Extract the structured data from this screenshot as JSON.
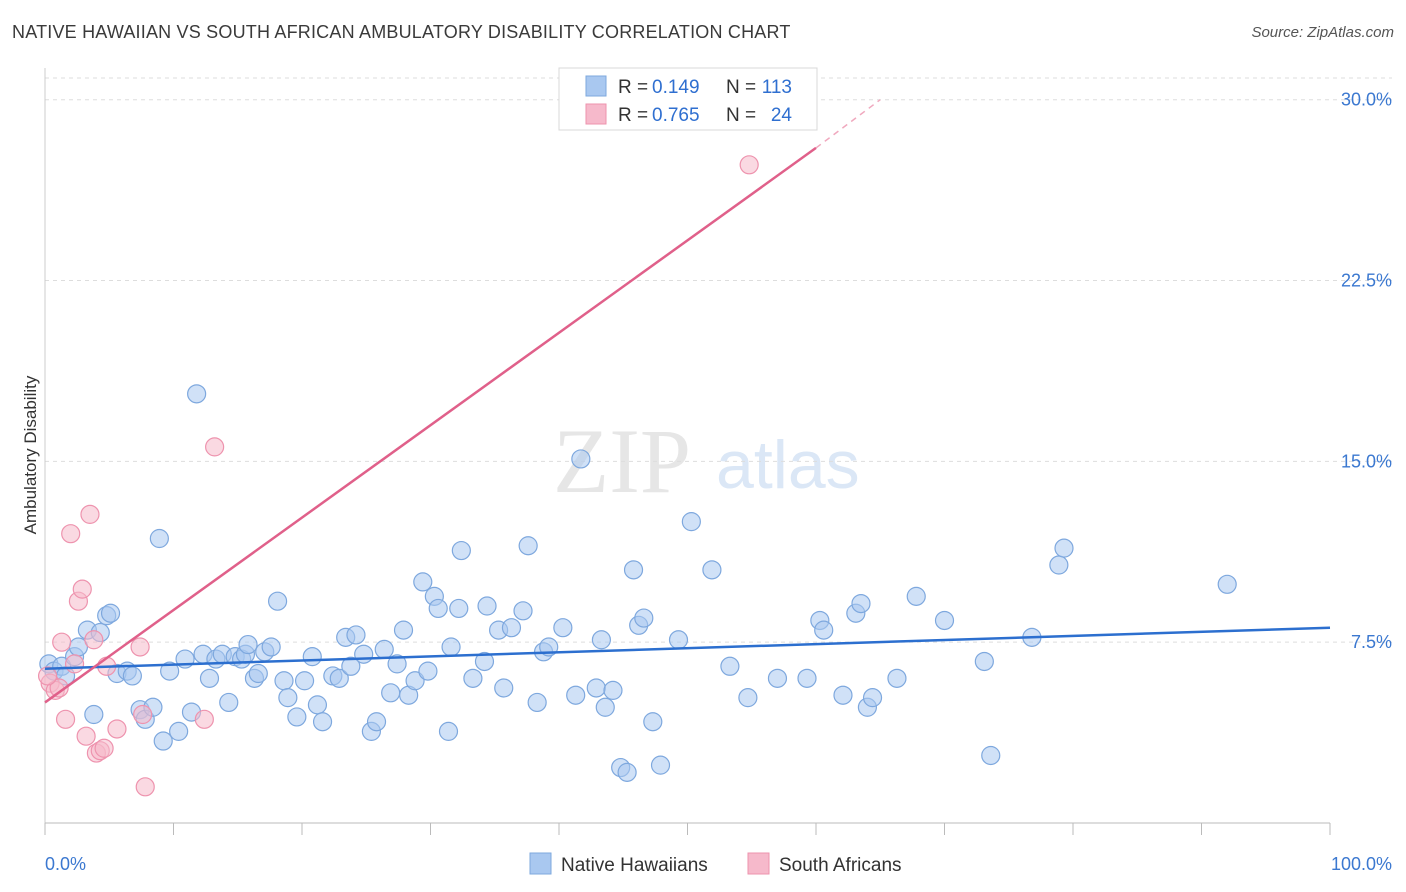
{
  "title": "NATIVE HAWAIIAN VS SOUTH AFRICAN AMBULATORY DISABILITY CORRELATION CHART",
  "source": "Source: ZipAtlas.com",
  "watermark": {
    "zip": "ZIP",
    "atlas": "atlas"
  },
  "colors": {
    "blue_fill": "#a9c8f0",
    "blue_stroke": "#7ea8de",
    "blue_line": "#2c6fcf",
    "pink_fill": "#f6b9cb",
    "pink_stroke": "#ee93ae",
    "pink_line": "#e0608a",
    "tick_text": "#3b78d0",
    "grid": "#dddddd"
  },
  "legend": {
    "rows": [
      {
        "r_label": "R =",
        "r_value": "0.149",
        "n_label": "N =",
        "n_value": "113",
        "series": "blue"
      },
      {
        "r_label": "R =",
        "r_value": "0.765",
        "n_label": "N =",
        "n_value": "24",
        "series": "pink"
      }
    ]
  },
  "bottom_legend": [
    "Native Hawaiians",
    "South Africans"
  ],
  "chart_data": {
    "type": "scatter",
    "title": "NATIVE HAWAIIAN VS SOUTH AFRICAN AMBULATORY DISABILITY CORRELATION CHART",
    "xlabel": "",
    "ylabel": "Ambulatory Disability",
    "x_tick_labels": [
      "0.0%",
      "100.0%"
    ],
    "y_tick_labels": [
      "7.5%",
      "15.0%",
      "22.5%",
      "30.0%"
    ],
    "y_ticks": [
      7.5,
      15.0,
      22.5,
      30.0
    ],
    "xlim": [
      0,
      100
    ],
    "ylim": [
      0,
      30.9
    ],
    "grid": "horizontal dashed",
    "legend_placement": "top-center",
    "series": [
      {
        "name": "Native Hawaiians",
        "color": "#a9c8f0",
        "trend": {
          "x": [
            0,
            100
          ],
          "y": [
            6.4,
            8.1
          ]
        },
        "points": [
          [
            0.3,
            6.6
          ],
          [
            0.7,
            6.3
          ],
          [
            1.3,
            6.5
          ],
          [
            1.6,
            6.1
          ],
          [
            2.3,
            6.9
          ],
          [
            2.6,
            7.3
          ],
          [
            3.3,
            8.0
          ],
          [
            3.8,
            4.5
          ],
          [
            4.3,
            7.9
          ],
          [
            4.8,
            8.6
          ],
          [
            5.1,
            8.7
          ],
          [
            5.6,
            6.2
          ],
          [
            6.4,
            6.3
          ],
          [
            6.8,
            6.1
          ],
          [
            7.4,
            4.7
          ],
          [
            7.8,
            4.3
          ],
          [
            8.4,
            4.8
          ],
          [
            8.9,
            11.8
          ],
          [
            9.2,
            3.4
          ],
          [
            9.7,
            6.3
          ],
          [
            10.4,
            3.8
          ],
          [
            10.9,
            6.8
          ],
          [
            11.4,
            4.6
          ],
          [
            11.8,
            17.8
          ],
          [
            12.3,
            7.0
          ],
          [
            12.8,
            6.0
          ],
          [
            13.3,
            6.8
          ],
          [
            13.8,
            7.0
          ],
          [
            14.3,
            5.0
          ],
          [
            14.8,
            6.9
          ],
          [
            15.3,
            6.8
          ],
          [
            15.6,
            7.0
          ],
          [
            15.8,
            7.4
          ],
          [
            16.3,
            6.0
          ],
          [
            16.6,
            6.2
          ],
          [
            17.1,
            7.1
          ],
          [
            17.6,
            7.3
          ],
          [
            18.1,
            9.2
          ],
          [
            18.6,
            5.9
          ],
          [
            18.9,
            5.2
          ],
          [
            19.6,
            4.4
          ],
          [
            20.2,
            5.9
          ],
          [
            20.8,
            6.9
          ],
          [
            21.2,
            4.9
          ],
          [
            21.6,
            4.2
          ],
          [
            22.4,
            6.1
          ],
          [
            22.9,
            6.0
          ],
          [
            23.4,
            7.7
          ],
          [
            23.8,
            6.5
          ],
          [
            24.2,
            7.8
          ],
          [
            24.8,
            7.0
          ],
          [
            25.4,
            3.8
          ],
          [
            25.8,
            4.2
          ],
          [
            26.4,
            7.2
          ],
          [
            26.9,
            5.4
          ],
          [
            27.4,
            6.6
          ],
          [
            27.9,
            8.0
          ],
          [
            28.3,
            5.3
          ],
          [
            28.8,
            5.9
          ],
          [
            29.4,
            10.0
          ],
          [
            29.8,
            6.3
          ],
          [
            30.3,
            9.4
          ],
          [
            30.6,
            8.9
          ],
          [
            31.4,
            3.8
          ],
          [
            31.6,
            7.3
          ],
          [
            32.2,
            8.9
          ],
          [
            32.4,
            11.3
          ],
          [
            33.3,
            6.0
          ],
          [
            34.2,
            6.7
          ],
          [
            34.4,
            9.0
          ],
          [
            35.3,
            8.0
          ],
          [
            35.7,
            5.6
          ],
          [
            36.3,
            8.1
          ],
          [
            37.2,
            8.8
          ],
          [
            37.6,
            11.5
          ],
          [
            38.3,
            5.0
          ],
          [
            38.8,
            7.1
          ],
          [
            39.2,
            7.3
          ],
          [
            40.3,
            8.1
          ],
          [
            41.3,
            5.3
          ],
          [
            41.7,
            15.1
          ],
          [
            42.9,
            5.6
          ],
          [
            43.3,
            7.6
          ],
          [
            43.6,
            4.8
          ],
          [
            44.2,
            5.5
          ],
          [
            44.8,
            2.3
          ],
          [
            45.3,
            2.1
          ],
          [
            45.8,
            10.5
          ],
          [
            46.2,
            8.2
          ],
          [
            46.6,
            8.5
          ],
          [
            47.3,
            4.2
          ],
          [
            47.9,
            2.4
          ],
          [
            49.3,
            7.6
          ],
          [
            50.3,
            12.5
          ],
          [
            51.9,
            10.5
          ],
          [
            53.3,
            6.5
          ],
          [
            54.7,
            5.2
          ],
          [
            57.0,
            6.0
          ],
          [
            59.3,
            6.0
          ],
          [
            60.3,
            8.4
          ],
          [
            60.6,
            8.0
          ],
          [
            62.1,
            5.3
          ],
          [
            63.1,
            8.7
          ],
          [
            63.5,
            9.1
          ],
          [
            64.0,
            4.8
          ],
          [
            64.4,
            5.2
          ],
          [
            66.3,
            6.0
          ],
          [
            67.8,
            9.4
          ],
          [
            70.0,
            8.4
          ],
          [
            73.1,
            6.7
          ],
          [
            73.6,
            2.8
          ],
          [
            76.8,
            7.7
          ],
          [
            78.9,
            10.7
          ],
          [
            79.3,
            11.4
          ],
          [
            92.0,
            9.9
          ]
        ]
      },
      {
        "name": "South Africans",
        "color": "#f6b9cb",
        "trend": {
          "x": [
            0,
            60
          ],
          "y": [
            5.0,
            28.0
          ],
          "dashed_extension": {
            "x": [
              60,
              65
            ],
            "y": [
              28.0,
              30.0
            ]
          }
        },
        "points": [
          [
            0.4,
            5.8
          ],
          [
            0.8,
            5.5
          ],
          [
            1.1,
            5.6
          ],
          [
            1.3,
            7.5
          ],
          [
            1.6,
            4.3
          ],
          [
            2.0,
            12.0
          ],
          [
            2.3,
            6.6
          ],
          [
            2.6,
            9.2
          ],
          [
            2.9,
            9.7
          ],
          [
            3.2,
            3.6
          ],
          [
            3.5,
            12.8
          ],
          [
            3.8,
            7.6
          ],
          [
            4.0,
            2.9
          ],
          [
            4.3,
            3.0
          ],
          [
            4.6,
            3.1
          ],
          [
            4.8,
            6.5
          ],
          [
            5.6,
            3.9
          ],
          [
            7.4,
            7.3
          ],
          [
            7.6,
            4.5
          ],
          [
            7.8,
            1.5
          ],
          [
            12.4,
            4.3
          ],
          [
            13.2,
            15.6
          ],
          [
            54.8,
            27.3
          ],
          [
            0.2,
            6.1
          ]
        ]
      }
    ]
  }
}
